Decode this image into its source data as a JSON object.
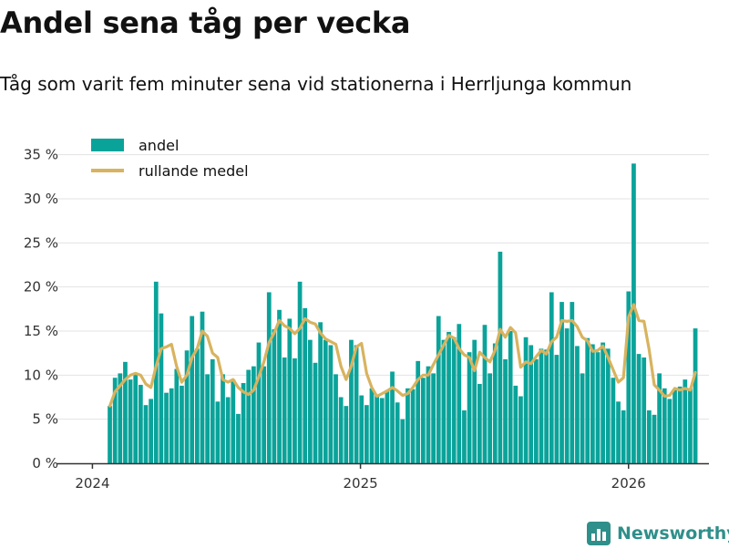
{
  "title": "Andel sena tåg per vecka",
  "subtitle": "Tåg som varit fem minuter sena vid stationerna i Herrljunga kommun",
  "brand": {
    "name": "Newsworthy",
    "logo_icon": "bar-chart-logo-icon"
  },
  "colors": {
    "bar": "#0aa39a",
    "line": "#d8b35f",
    "grid": "#e3e3e3",
    "axis": "#333333"
  },
  "chart_data": {
    "type": "bar",
    "title": "Andel sena tåg per vecka",
    "ylim": [
      0,
      36
    ],
    "yticks": [
      0,
      5,
      10,
      15,
      20,
      25,
      30,
      35
    ],
    "ytick_labels": [
      "0 %",
      "5 %",
      "10 %",
      "15 %",
      "20 %",
      "25 %",
      "30 %",
      "35 %"
    ],
    "xlim": [
      2023.9,
      2026.3
    ],
    "xticks": [
      2024,
      2025,
      2026
    ],
    "xtick_labels": [
      "2024",
      "2025",
      "2026"
    ],
    "legend": [
      "andel",
      "rullande medel"
    ],
    "legend_position": "top-left",
    "grid": true,
    "x_start": 2024.065,
    "week_step": 0.01916,
    "series": [
      {
        "name": "andel",
        "values": [
          6.5,
          9.7,
          10.2,
          11.5,
          9.5,
          10.1,
          8.9,
          6.6,
          7.3,
          20.6,
          17.0,
          8.0,
          8.5,
          10.7,
          8.8,
          12.8,
          16.7,
          13.0,
          17.2,
          10.1,
          11.8,
          7.0,
          10.1,
          7.5,
          9.5,
          5.6,
          9.1,
          10.6,
          11.0,
          13.7,
          11.0,
          19.4,
          15.2,
          17.4,
          12.0,
          16.4,
          11.9,
          20.6,
          17.6,
          14.0,
          11.4,
          16.0,
          14.0,
          13.4,
          10.1,
          7.5,
          6.5,
          14.0,
          13.4,
          7.7,
          6.6,
          8.5,
          7.8,
          7.4,
          8.3,
          10.4,
          6.9,
          5.0,
          8.5,
          8.4,
          11.6,
          9.7,
          11.0,
          10.2,
          16.7,
          14.0,
          14.9,
          14.3,
          15.8,
          6.0,
          12.6,
          14.0,
          9.0,
          15.7,
          10.2,
          13.6,
          24.0,
          11.8,
          15.0,
          8.8,
          7.6,
          14.3,
          13.4,
          11.8,
          13.0,
          12.9,
          19.4,
          12.3,
          18.3,
          15.3,
          18.3,
          13.3,
          10.2,
          14.2,
          13.5,
          12.6,
          13.7,
          13.0,
          9.7,
          7.0,
          6.0,
          19.5,
          34.0,
          12.4,
          12.0,
          6.0,
          5.5,
          10.2,
          8.5,
          7.3,
          8.3,
          8.7,
          9.5,
          8.5,
          15.3
        ]
      },
      {
        "name": "rullande medel",
        "values": [
          6.5,
          8.1,
          8.8,
          9.5,
          10.0,
          10.2,
          10.0,
          9.0,
          8.6,
          11.0,
          13.0,
          13.2,
          13.5,
          11.0,
          9.2,
          10.0,
          12.0,
          13.0,
          15.0,
          14.4,
          12.5,
          12.0,
          9.5,
          9.2,
          9.5,
          8.6,
          8.1,
          7.8,
          8.3,
          9.8,
          11.5,
          13.7,
          14.8,
          16.2,
          15.6,
          15.3,
          14.7,
          15.3,
          16.4,
          16.0,
          15.8,
          14.8,
          14.1,
          13.8,
          13.5,
          11.0,
          9.5,
          11.0,
          13.2,
          13.6,
          10.2,
          8.6,
          7.6,
          7.9,
          8.2,
          8.6,
          8.2,
          7.7,
          7.9,
          8.6,
          9.5,
          10.0,
          10.0,
          11.2,
          12.3,
          13.4,
          14.5,
          14.2,
          13.0,
          12.3,
          12.0,
          10.5,
          12.6,
          12.0,
          11.5,
          12.8,
          15.2,
          14.3,
          15.4,
          14.8,
          10.9,
          11.5,
          11.3,
          12.1,
          12.8,
          12.4,
          13.8,
          14.3,
          16.2,
          16.1,
          16.2,
          15.5,
          14.3,
          13.9,
          12.7,
          12.8,
          13.3,
          12.0,
          10.6,
          9.2,
          9.7,
          16.6,
          18.0,
          16.2,
          16.1,
          12.9,
          8.9,
          8.3,
          7.6,
          7.7,
          8.5,
          8.3,
          8.5,
          8.3,
          10.3
        ]
      }
    ]
  }
}
